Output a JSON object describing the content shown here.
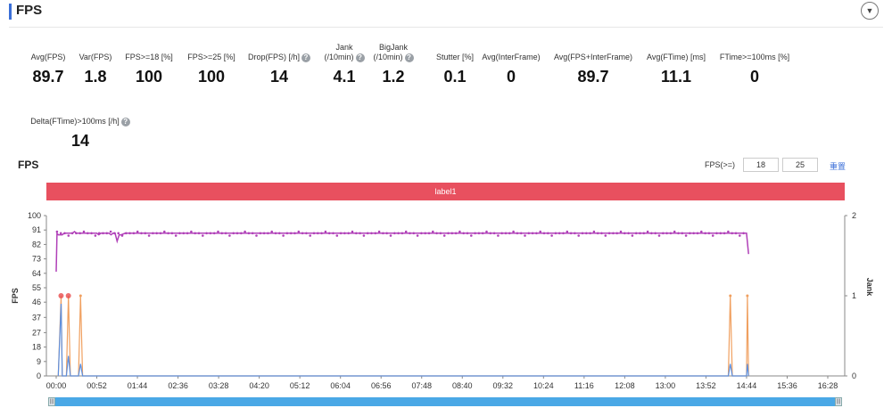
{
  "header": {
    "title": "FPS",
    "collapse_icon": "chevron-down-icon"
  },
  "metrics": [
    {
      "label": "Avg(FPS)",
      "value": "89.7",
      "help": false
    },
    {
      "label": "Var(FPS)",
      "value": "1.8",
      "help": false
    },
    {
      "label": "FPS>=18 [%]",
      "value": "100",
      "help": false
    },
    {
      "label": "FPS>=25 [%]",
      "value": "100",
      "help": false
    },
    {
      "label": "Drop(FPS) [/h]",
      "value": "14",
      "help": true
    },
    {
      "label": "Jank\n(/10min)",
      "value": "4.1",
      "help": true
    },
    {
      "label": "BigJank\n(/10min)",
      "value": "1.2",
      "help": true
    },
    {
      "label": "Stutter [%]",
      "value": "0.1",
      "help": false
    },
    {
      "label": "Avg(InterFrame)",
      "value": "0",
      "help": false
    },
    {
      "label": "Avg(FPS+InterFrame)",
      "value": "89.7",
      "help": false
    },
    {
      "label": "Avg(FTime) [ms]",
      "value": "11.1",
      "help": false
    },
    {
      "label": "FTime>=100ms [%]",
      "value": "0",
      "help": false
    },
    {
      "label": "Delta(FTime)>100ms [/h]",
      "value": "14",
      "help": true
    }
  ],
  "chart_section": {
    "title": "FPS",
    "fps_threshold_label": "FPS(>=)",
    "threshold_values": [
      "18",
      "25"
    ],
    "reset_label": "重置",
    "label_bar": "label1"
  },
  "chart_data": {
    "type": "line",
    "x": [
      "00:00",
      "00:52",
      "01:44",
      "02:36",
      "03:28",
      "04:20",
      "05:12",
      "06:04",
      "06:56",
      "07:48",
      "08:40",
      "09:32",
      "10:24",
      "11:16",
      "12:08",
      "13:00",
      "13:52",
      "14:44",
      "15:36",
      "16:28"
    ],
    "ylabel": "FPS",
    "y2label": "Jank",
    "ylim": [
      0,
      100
    ],
    "y2lim": [
      0,
      2
    ],
    "yticks": [
      "0",
      "9",
      "18",
      "27",
      "37",
      "46",
      "55",
      "64",
      "73",
      "82",
      "91",
      "100"
    ],
    "y2ticks": [
      "0",
      "1",
      "2"
    ],
    "series": [
      {
        "color": "#b040b8",
        "axis": "left",
        "points": [
          [
            0,
            65
          ],
          [
            0.02,
            89
          ],
          [
            0.05,
            88
          ],
          [
            0.08,
            88
          ],
          [
            0.1,
            88
          ],
          [
            0.13,
            88
          ],
          [
            0.15,
            88
          ],
          [
            0.2,
            89
          ],
          [
            0.25,
            89
          ],
          [
            0.3,
            89
          ],
          [
            0.35,
            89
          ],
          [
            0.4,
            89
          ],
          [
            0.45,
            90
          ],
          [
            0.5,
            89
          ],
          [
            0.55,
            89
          ],
          [
            0.6,
            89
          ],
          [
            0.65,
            89
          ],
          [
            0.7,
            89
          ],
          [
            0.75,
            89
          ],
          [
            0.8,
            89
          ],
          [
            0.85,
            89
          ],
          [
            0.9,
            89
          ],
          [
            0.95,
            89
          ],
          [
            1.0,
            89
          ],
          [
            1.05,
            88
          ],
          [
            1.1,
            89
          ],
          [
            1.2,
            89
          ],
          [
            1.27,
            89
          ],
          [
            1.3,
            89
          ],
          [
            1.35,
            88
          ],
          [
            1.4,
            89
          ],
          [
            1.45,
            89
          ],
          [
            1.5,
            84
          ],
          [
            1.55,
            88
          ],
          [
            1.6,
            88
          ],
          [
            1.7,
            89
          ],
          [
            2.0,
            89
          ],
          [
            3.0,
            89
          ],
          [
            4.0,
            89
          ],
          [
            5.0,
            89
          ],
          [
            6.0,
            89
          ],
          [
            7.0,
            89
          ],
          [
            8.0,
            89
          ],
          [
            9.0,
            89
          ],
          [
            10.0,
            89
          ],
          [
            11.0,
            89
          ],
          [
            12.0,
            89
          ],
          [
            13.0,
            89
          ],
          [
            14.0,
            89
          ],
          [
            15.0,
            89
          ],
          [
            16.0,
            89
          ],
          [
            16.5,
            89
          ],
          [
            16.7,
            89
          ],
          [
            16.8,
            89
          ],
          [
            16.9,
            89
          ],
          [
            16.95,
            89
          ],
          [
            17.0,
            89
          ],
          [
            17.05,
            76
          ]
        ]
      },
      {
        "color": "#f0a060",
        "axis": "right",
        "points": [
          [
            0.05,
            0
          ],
          [
            0.12,
            1
          ],
          [
            0.15,
            0
          ],
          [
            0.25,
            0
          ],
          [
            0.3,
            1
          ],
          [
            0.35,
            0
          ],
          [
            0.55,
            0
          ],
          [
            0.6,
            1
          ],
          [
            0.65,
            0
          ],
          [
            16.55,
            0
          ],
          [
            16.6,
            1
          ],
          [
            16.65,
            0
          ],
          [
            17.0,
            0
          ],
          [
            17.02,
            1
          ],
          [
            17.05,
            0
          ]
        ]
      },
      {
        "color": "#5b8fe0",
        "axis": "right",
        "points": [
          [
            0.05,
            0
          ],
          [
            0.12,
            0.9
          ],
          [
            0.15,
            0
          ],
          [
            0.25,
            0
          ],
          [
            0.3,
            0.25
          ],
          [
            0.35,
            0
          ],
          [
            0.55,
            0
          ],
          [
            0.6,
            0.15
          ],
          [
            0.65,
            0
          ],
          [
            16.55,
            0
          ],
          [
            16.6,
            0.15
          ],
          [
            16.65,
            0
          ],
          [
            17.0,
            0
          ],
          [
            17.02,
            0.15
          ],
          [
            17.05,
            0
          ]
        ]
      }
    ]
  }
}
